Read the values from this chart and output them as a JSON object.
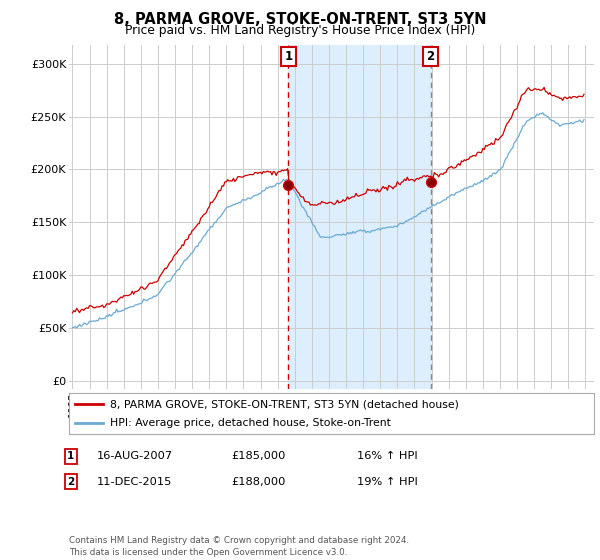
{
  "title": "8, PARMA GROVE, STOKE-ON-TRENT, ST3 5YN",
  "subtitle": "Price paid vs. HM Land Registry's House Price Index (HPI)",
  "yticks": [
    0,
    50000,
    100000,
    150000,
    200000,
    250000,
    300000
  ],
  "ytick_labels": [
    "£0",
    "£50K",
    "£100K",
    "£150K",
    "£200K",
    "£250K",
    "£300K"
  ],
  "xlim_start": 1994.8,
  "xlim_end": 2025.5,
  "ylim": [
    -8000,
    318000
  ],
  "marker1_x": 2007.625,
  "marker1_price_y": 185000,
  "marker2_x": 2015.94,
  "marker2_price_y": 188000,
  "marker1_date": "16-AUG-2007",
  "marker1_price": "£185,000",
  "marker1_hpi": "16% ↑ HPI",
  "marker2_date": "11-DEC-2015",
  "marker2_price": "£188,000",
  "marker2_hpi": "19% ↑ HPI",
  "hpi_color": "#6aaad4",
  "price_color": "#cc0000",
  "marker2_vline_color": "#888888",
  "shade_color": "#ddeeff",
  "legend_label_price": "8, PARMA GROVE, STOKE-ON-TRENT, ST3 5YN (detached house)",
  "legend_label_hpi": "HPI: Average price, detached house, Stoke-on-Trent",
  "footer": "Contains HM Land Registry data © Crown copyright and database right 2024.\nThis data is licensed under the Open Government Licence v3.0.",
  "background_color": "#ffffff",
  "grid_color": "#cccccc"
}
